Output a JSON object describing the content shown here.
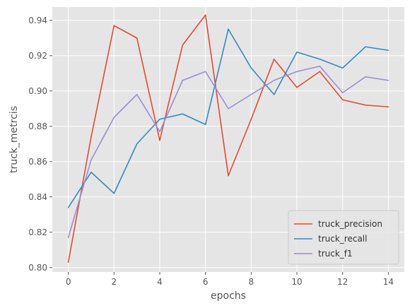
{
  "chart_data": {
    "type": "line",
    "xlabel": "epochs",
    "ylabel": "truck_metrcis",
    "x": [
      0,
      1,
      2,
      3,
      4,
      5,
      6,
      7,
      8,
      9,
      10,
      11,
      12,
      13,
      14
    ],
    "xlim": [
      -0.7,
      14.7
    ],
    "ylim": [
      0.7975,
      0.9475
    ],
    "xticks": [
      0,
      2,
      4,
      6,
      8,
      10,
      12,
      14
    ],
    "yticks": [
      0.8,
      0.82,
      0.84,
      0.86,
      0.88,
      0.9,
      0.92,
      0.94
    ],
    "ytick_labels": [
      "0.80",
      "0.82",
      "0.84",
      "0.86",
      "0.88",
      "0.90",
      "0.92",
      "0.94"
    ],
    "grid": true,
    "legend_position": "lower-right",
    "series": [
      {
        "name": "truck_precision",
        "color": "#E24A33",
        "values": [
          0.803,
          0.874,
          0.937,
          0.93,
          0.872,
          0.926,
          0.943,
          0.852,
          0.884,
          0.918,
          0.902,
          0.911,
          0.895,
          0.892,
          0.891
        ]
      },
      {
        "name": "truck_recall",
        "color": "#348ABD",
        "values": [
          0.834,
          0.854,
          0.842,
          0.87,
          0.884,
          0.887,
          0.881,
          0.935,
          0.913,
          0.898,
          0.922,
          0.918,
          0.913,
          0.925,
          0.923
        ]
      },
      {
        "name": "truck_f1",
        "color": "#988ED5",
        "values": [
          0.817,
          0.861,
          0.885,
          0.898,
          0.877,
          0.906,
          0.911,
          0.89,
          0.898,
          0.906,
          0.911,
          0.914,
          0.899,
          0.908,
          0.906
        ]
      }
    ]
  }
}
